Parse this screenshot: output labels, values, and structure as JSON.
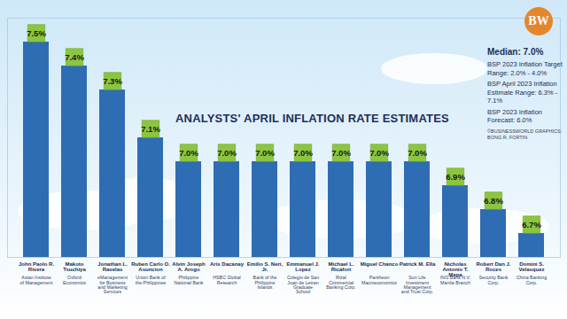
{
  "chart_data": {
    "type": "bar",
    "title": "ANALYSTS' APRIL INFLATION RATE ESTIMATES",
    "categories": [
      "John Paolo R. Rivera",
      "Makoto Tsuchiya",
      "Jonathan L. Ravelas",
      "Ruben Carlo O. Asuncion",
      "Alvin Joseph A. Arogo",
      "Aris Dacanay",
      "Emilio S. Neri, Jr.",
      "Emmanuel J. Lopez",
      "Michael L. Ricafort",
      "Miguel Chanco",
      "Patrick M. Ella",
      "Nicholas Antonio T. Mapa",
      "Robert Dan J. Roces",
      "Domini S. Velasquez"
    ],
    "institutions": [
      "Asian Institute of Management",
      "Oxford Economics",
      "eManagement for Business and Marketing Services",
      "Union Bank of the Philippines",
      "Philippine National Bank",
      "HSBC Global Research",
      "Bank of the Philippine Islands",
      "Colegio de San Juan de Letran Graduate School",
      "Rizal Commercial Banking Corp.",
      "Pantheon Macroeconomics",
      "Sun Life Investment Management and Trust Corp.",
      "ING Bank N.V. Manila Branch",
      "Security Bank Corp.",
      "China Banking Corp."
    ],
    "values": [
      7.5,
      7.4,
      7.3,
      7.1,
      7.0,
      7.0,
      7.0,
      7.0,
      7.0,
      7.0,
      7.0,
      6.9,
      6.8,
      6.7
    ],
    "value_labels": [
      "7.5%",
      "7.4%",
      "7.3%",
      "7.1%",
      "7.0%",
      "7.0%",
      "7.0%",
      "7.0%",
      "7.0%",
      "7.0%",
      "7.0%",
      "6.9%",
      "6.8%",
      "6.7%"
    ],
    "data_labels": true,
    "color": "#2e6db3",
    "ylim": [
      6.6,
      7.6
    ],
    "tick_labels": "x",
    "annotations": [
      "Median: 7.0%",
      "BSP 2023 Inflation Target Range: 2.0% - 4.0%",
      "BSP April 2023 Inflation Estimate Range: 6.3% - 7.1%",
      "BSP 2023 Inflation Forecast: 6.0%"
    ],
    "logo": "BW",
    "credit": "©BUSINESSWORLD GRAPHICS: BONG R. FORTIN"
  }
}
